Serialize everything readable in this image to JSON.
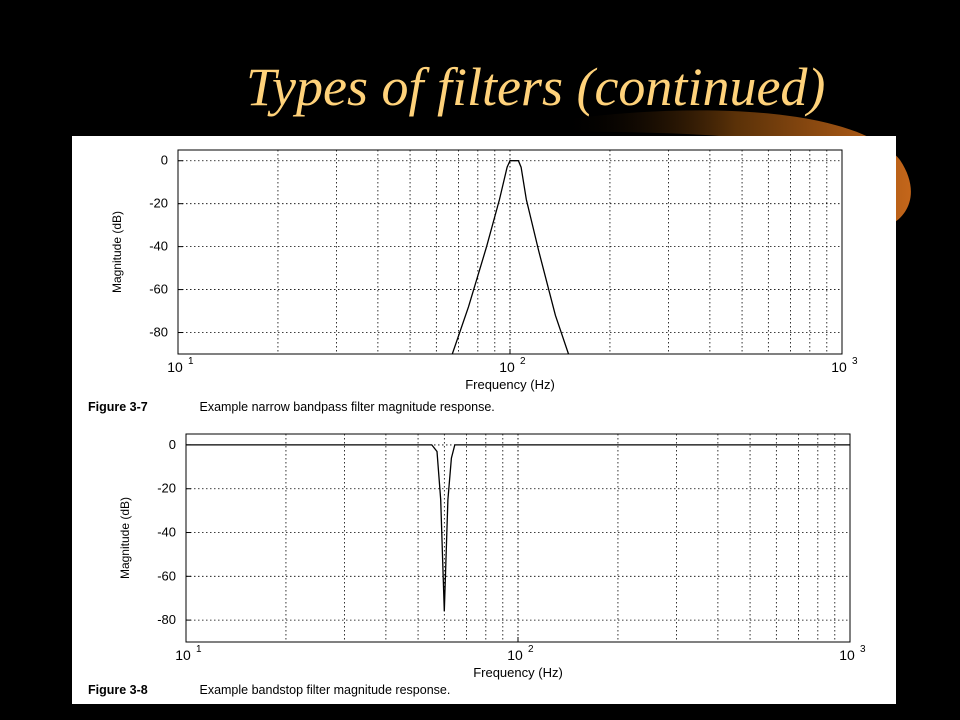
{
  "slide": {
    "title": "Types of filters (continued)",
    "background_color": "#000000",
    "title_color": "#ffd27a"
  },
  "chart_data": [
    {
      "type": "line",
      "xlabel": "Frequency (Hz)",
      "ylabel": "Magnitude (dB)",
      "x_scale": "log",
      "xlim": [
        10,
        1000
      ],
      "ylim": [
        -90,
        5
      ],
      "yticks": [
        0,
        -20,
        -40,
        -60,
        -80
      ],
      "ytick_labels": [
        "0",
        "-20",
        "-40",
        "-60",
        "-80"
      ],
      "xtick_labels": [
        {
          "base": "10",
          "exp": "1",
          "value": 10
        },
        {
          "base": "10",
          "exp": "2",
          "value": 100
        },
        {
          "base": "10",
          "exp": "3",
          "value": 1000
        }
      ],
      "grid": true,
      "series": [
        {
          "x": [
            67,
            75,
            85,
            93,
            98,
            100,
            106,
            108,
            112,
            122,
            137,
            150
          ],
          "y": [
            -90,
            -68,
            -40,
            -18,
            -3,
            0,
            0,
            -3,
            -18,
            -42,
            -72,
            -90
          ]
        }
      ],
      "caption_label": "Figure 3-7",
      "caption_text": "Example narrow bandpass filter magnitude response."
    },
    {
      "type": "line",
      "xlabel": "Frequency (Hz)",
      "ylabel": "Magnitude (dB)",
      "x_scale": "log",
      "xlim": [
        10,
        1000
      ],
      "ylim": [
        -90,
        5
      ],
      "yticks": [
        0,
        -20,
        -40,
        -60,
        -80
      ],
      "ytick_labels": [
        "0",
        "-20",
        "-40",
        "-60",
        "-80"
      ],
      "xtick_labels": [
        {
          "base": "10",
          "exp": "1",
          "value": 10
        },
        {
          "base": "10",
          "exp": "2",
          "value": 100
        },
        {
          "base": "10",
          "exp": "3",
          "value": 1000
        }
      ],
      "grid": true,
      "series": [
        {
          "x": [
            10,
            55,
            57,
            58.5,
            60,
            61.5,
            63,
            64.5,
            1000
          ],
          "y": [
            0,
            0,
            -3,
            -25,
            -76,
            -25,
            -6,
            0,
            0
          ]
        }
      ],
      "caption_label": "Figure 3-8",
      "caption_text": "Example bandstop filter magnitude response."
    }
  ]
}
